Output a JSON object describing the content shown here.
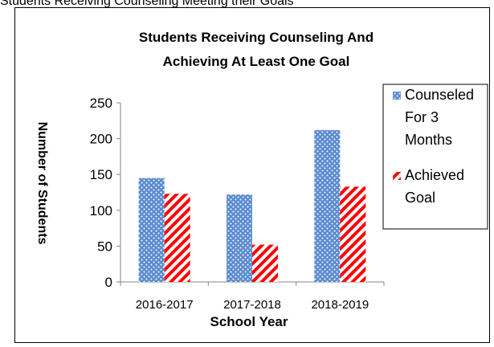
{
  "page": {
    "heading": "Students Receiving Counseling Meeting their Goals"
  },
  "chart_data": {
    "type": "bar",
    "title_lines": [
      "Students Receiving Counseling And",
      "Achieving At Least One Goal"
    ],
    "xlabel": "School Year",
    "ylabel": "Number of Students",
    "categories": [
      "2016-2017",
      "2017-2018",
      "2018-2019"
    ],
    "series": [
      {
        "name": "Counseled For 3 Months",
        "name_lines": [
          "Counseled",
          "For 3",
          "Months"
        ],
        "values": [
          145,
          122,
          212
        ],
        "color": "#5B8BD0",
        "pattern": "dots"
      },
      {
        "name": "Achieved Goal",
        "name_lines": [
          "Achieved",
          "Goal"
        ],
        "values": [
          123,
          52,
          133
        ],
        "color": "#FF0000",
        "pattern": "diagonal-stripes"
      }
    ],
    "ylim": [
      0,
      250
    ],
    "yticks": [
      0,
      50,
      100,
      150,
      200,
      250
    ],
    "grid": false,
    "legend_position": "right"
  }
}
